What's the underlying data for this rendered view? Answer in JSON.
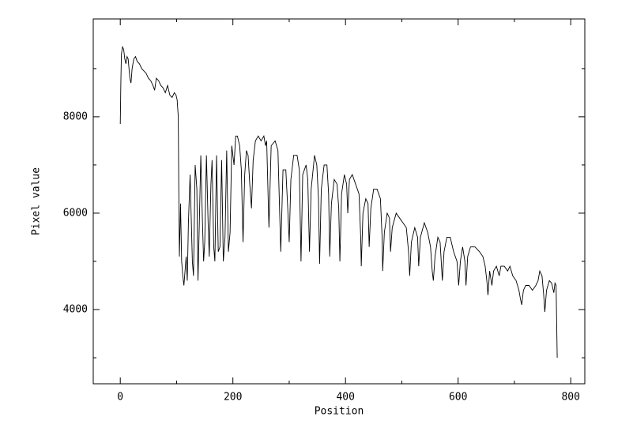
{
  "chart_data": {
    "type": "line",
    "xlabel": "Position",
    "ylabel": "Pixel value",
    "xlim": [
      -48,
      825
    ],
    "ylim": [
      2460,
      10030
    ],
    "xticks": [
      0,
      200,
      400,
      600,
      800
    ],
    "yticks": [
      4000,
      6000,
      8000
    ],
    "xminorticks": [
      100,
      300,
      500,
      700
    ],
    "yminorticks": [
      3000,
      5000,
      7000,
      9000
    ],
    "color": "#000000",
    "x": [
      0,
      1,
      2,
      4,
      6,
      8,
      10,
      12,
      14,
      17,
      19,
      21,
      24,
      27,
      30,
      34,
      38,
      42,
      46,
      50,
      54,
      58,
      61,
      64,
      68,
      72,
      76,
      80,
      84,
      88,
      92,
      96,
      99,
      101,
      103,
      104,
      105,
      107,
      109,
      111,
      113,
      115,
      117,
      119,
      121,
      124,
      126,
      128,
      130,
      133,
      136,
      138,
      140,
      143,
      146,
      148,
      150,
      153,
      156,
      158,
      161,
      163,
      166,
      168,
      171,
      174,
      177,
      180,
      183,
      186,
      189,
      192,
      195,
      198,
      202,
      205,
      208,
      212,
      215,
      218,
      221,
      224,
      227,
      230,
      233,
      236,
      240,
      245,
      250,
      255,
      258,
      260,
      264,
      268,
      275,
      280,
      285,
      289,
      294,
      297,
      300,
      303,
      308,
      314,
      318,
      321,
      324,
      330,
      333,
      336,
      339,
      345,
      349,
      352,
      354,
      357,
      362,
      367,
      370,
      372,
      375,
      380,
      385,
      388,
      390,
      393,
      398,
      402,
      404,
      407,
      412,
      418,
      424,
      427,
      428,
      431,
      436,
      440,
      442,
      445,
      450,
      456,
      462,
      465,
      466,
      469,
      474,
      478,
      480,
      483,
      490,
      496,
      502,
      508,
      512,
      514,
      517,
      523,
      528,
      530,
      533,
      540,
      546,
      551,
      554,
      556,
      559,
      564,
      568,
      572,
      575,
      580,
      586,
      592,
      598,
      601,
      604,
      608,
      612,
      614,
      617,
      622,
      630,
      638,
      644,
      648,
      651,
      653,
      656,
      660,
      663,
      668,
      673,
      676,
      682,
      688,
      692,
      697,
      703,
      708,
      711,
      713,
      716,
      720,
      726,
      732,
      738,
      742,
      745,
      749,
      752,
      754,
      757,
      762,
      766,
      770,
      772,
      774,
      776
    ],
    "values": [
      7850,
      8700,
      9300,
      9450,
      9400,
      9200,
      9100,
      9250,
      9200,
      8800,
      8700,
      9000,
      9200,
      9250,
      9150,
      9100,
      9000,
      8950,
      8900,
      8800,
      8750,
      8650,
      8550,
      8800,
      8750,
      8650,
      8600,
      8500,
      8650,
      8450,
      8400,
      8500,
      8450,
      8350,
      8000,
      6300,
      5100,
      6200,
      5000,
      4700,
      4500,
      4800,
      5100,
      4600,
      5800,
      6800,
      5900,
      5000,
      4700,
      7000,
      6500,
      4600,
      5600,
      7200,
      5800,
      5000,
      5400,
      7200,
      5800,
      5100,
      6600,
      7100,
      5300,
      5000,
      7200,
      5200,
      5300,
      7100,
      5000,
      5500,
      7300,
      5200,
      5600,
      7400,
      7000,
      7600,
      7600,
      7400,
      6900,
      5400,
      6800,
      7300,
      7200,
      6600,
      6100,
      7100,
      7500,
      7600,
      7500,
      7600,
      7400,
      7500,
      5700,
      7400,
      7500,
      7300,
      5200,
      6900,
      6900,
      6200,
      5400,
      6700,
      7200,
      7200,
      6900,
      5000,
      6800,
      7000,
      6700,
      5200,
      6500,
      7200,
      7000,
      6300,
      4950,
      6500,
      7000,
      7000,
      6400,
      5100,
      6200,
      6700,
      6600,
      6100,
      5000,
      6400,
      6800,
      6600,
      6000,
      6700,
      6800,
      6600,
      6400,
      5500,
      4900,
      6000,
      6300,
      6200,
      5300,
      6100,
      6500,
      6500,
      6300,
      5500,
      4800,
      5600,
      6000,
      5900,
      5200,
      5700,
      6000,
      5900,
      5800,
      5700,
      5200,
      4700,
      5400,
      5700,
      5500,
      4900,
      5500,
      5800,
      5600,
      5300,
      4800,
      4600,
      5100,
      5500,
      5400,
      4600,
      5200,
      5500,
      5500,
      5200,
      5000,
      4500,
      5000,
      5300,
      5000,
      4500,
      5100,
      5300,
      5300,
      5200,
      5100,
      4900,
      4600,
      4300,
      4800,
      4500,
      4800,
      4900,
      4700,
      4900,
      4900,
      4800,
      4900,
      4700,
      4600,
      4400,
      4200,
      4100,
      4400,
      4500,
      4500,
      4400,
      4500,
      4600,
      4800,
      4700,
      4300,
      3950,
      4400,
      4600,
      4550,
      4350,
      4550,
      4500,
      3000
    ]
  }
}
